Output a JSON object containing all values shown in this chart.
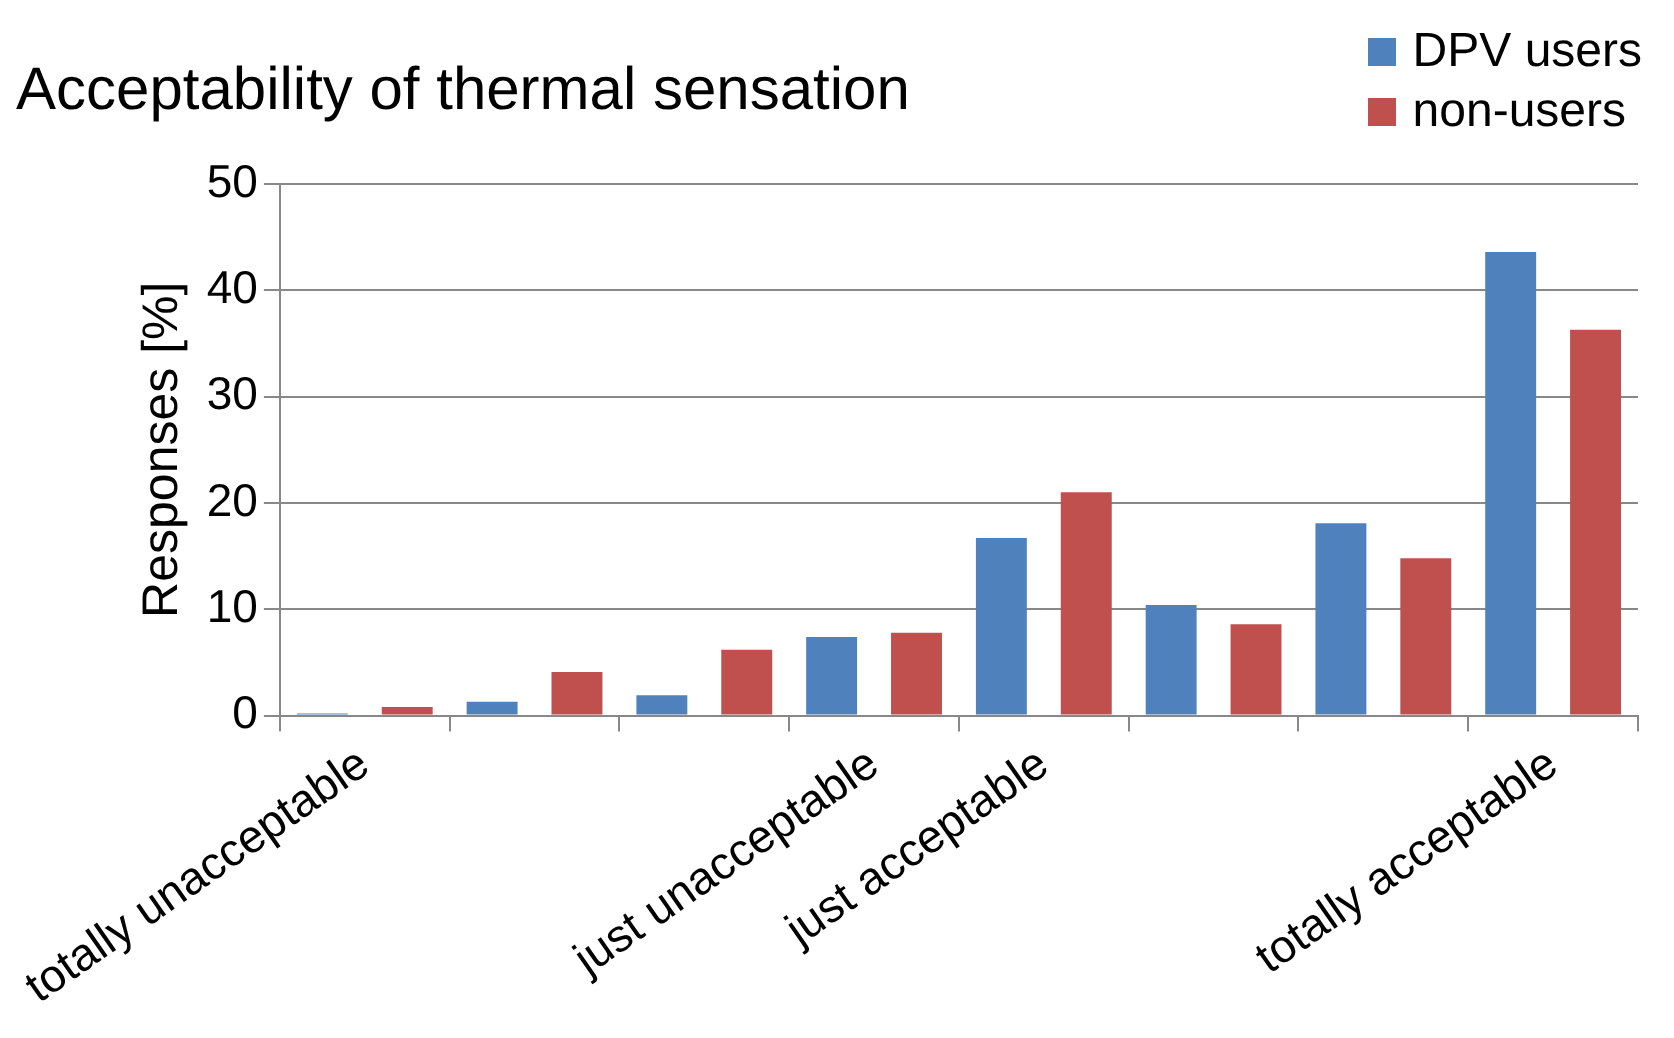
{
  "chart_data": {
    "type": "bar",
    "title": "Acceptability of thermal sensation",
    "ylabel": "Responses [%]",
    "categories": [
      "totally unacceptable",
      null,
      null,
      "just unacceptable",
      "just acceptable",
      null,
      null,
      "totally acceptable"
    ],
    "series": [
      {
        "name": "DPV users",
        "color": "#4f81bd",
        "values": [
          0.2,
          1.3,
          1.9,
          7.4,
          16.7,
          10.4,
          18.1,
          43.6
        ]
      },
      {
        "name": "non-users",
        "color": "#c0504d",
        "values": [
          0.8,
          4.1,
          6.2,
          7.8,
          21.0,
          8.6,
          14.8,
          36.3
        ]
      }
    ],
    "ylim": [
      0,
      50
    ],
    "yticks": [
      0,
      10,
      20,
      30,
      40,
      50
    ],
    "grid": "y",
    "legend": "top right"
  }
}
